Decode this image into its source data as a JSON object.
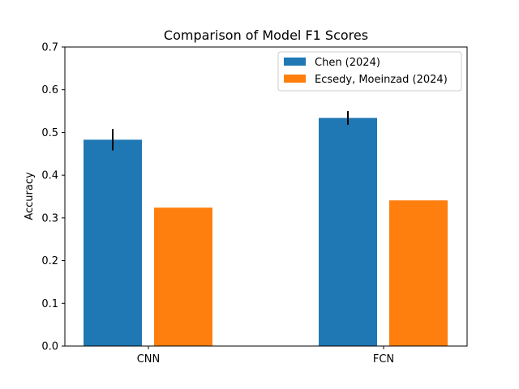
{
  "chart_data": {
    "type": "bar",
    "title": "Comparison of Model F1 Scores",
    "xlabel": "",
    "ylabel": "Accuracy",
    "ylim": [
      0,
      0.7
    ],
    "yticks": [
      0.0,
      0.1,
      0.2,
      0.3,
      0.4,
      0.5,
      0.6,
      0.7
    ],
    "ytick_labels": [
      "0.0",
      "0.1",
      "0.2",
      "0.3",
      "0.4",
      "0.5",
      "0.6",
      "0.7"
    ],
    "categories": [
      "CNN",
      "FCN"
    ],
    "grid": false,
    "legend_position": "top-right",
    "series": [
      {
        "name": "Chen (2024)",
        "color": "#1f77b4",
        "values": [
          0.483,
          0.534
        ],
        "error": [
          0.025,
          0.016
        ]
      },
      {
        "name": "Ecsedy, Moeinzad (2024)",
        "color": "#ff7f0e",
        "values": [
          0.324,
          0.341
        ],
        "error": null
      }
    ]
  }
}
